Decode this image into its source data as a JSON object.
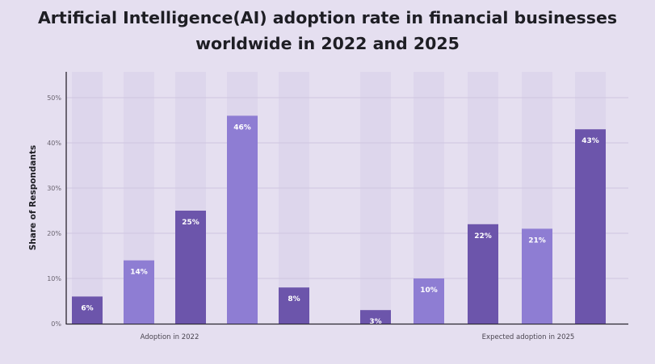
{
  "chart_data": {
    "type": "bar",
    "title": "Artificial Intelligence(AI) adoption rate in financial businesses worldwide in 2022 and 2025",
    "ylabel": "Share of Respondants",
    "xlabel": "",
    "ylim": [
      0,
      55
    ],
    "yticks": [
      "0%",
      "10%",
      "20%",
      "30%",
      "40%",
      "50%"
    ],
    "grid": true,
    "groups": [
      {
        "label": "Adoption in 2022",
        "values": [
          6,
          14,
          25,
          46,
          8
        ],
        "labels": [
          "6%",
          "14%",
          "25%",
          "46%",
          "8%"
        ]
      },
      {
        "label": "Expected adoption in 2025",
        "values": [
          3,
          10,
          22,
          21,
          43
        ],
        "labels": [
          "3%",
          "10%",
          "22%",
          "21%",
          "43%"
        ]
      }
    ],
    "colors": {
      "dark": "#6c55ab",
      "light": "#8e7dd3",
      "column_bg": "#ddd6ec",
      "grid": "#cfc5e0",
      "axis": "#2a2530"
    }
  }
}
